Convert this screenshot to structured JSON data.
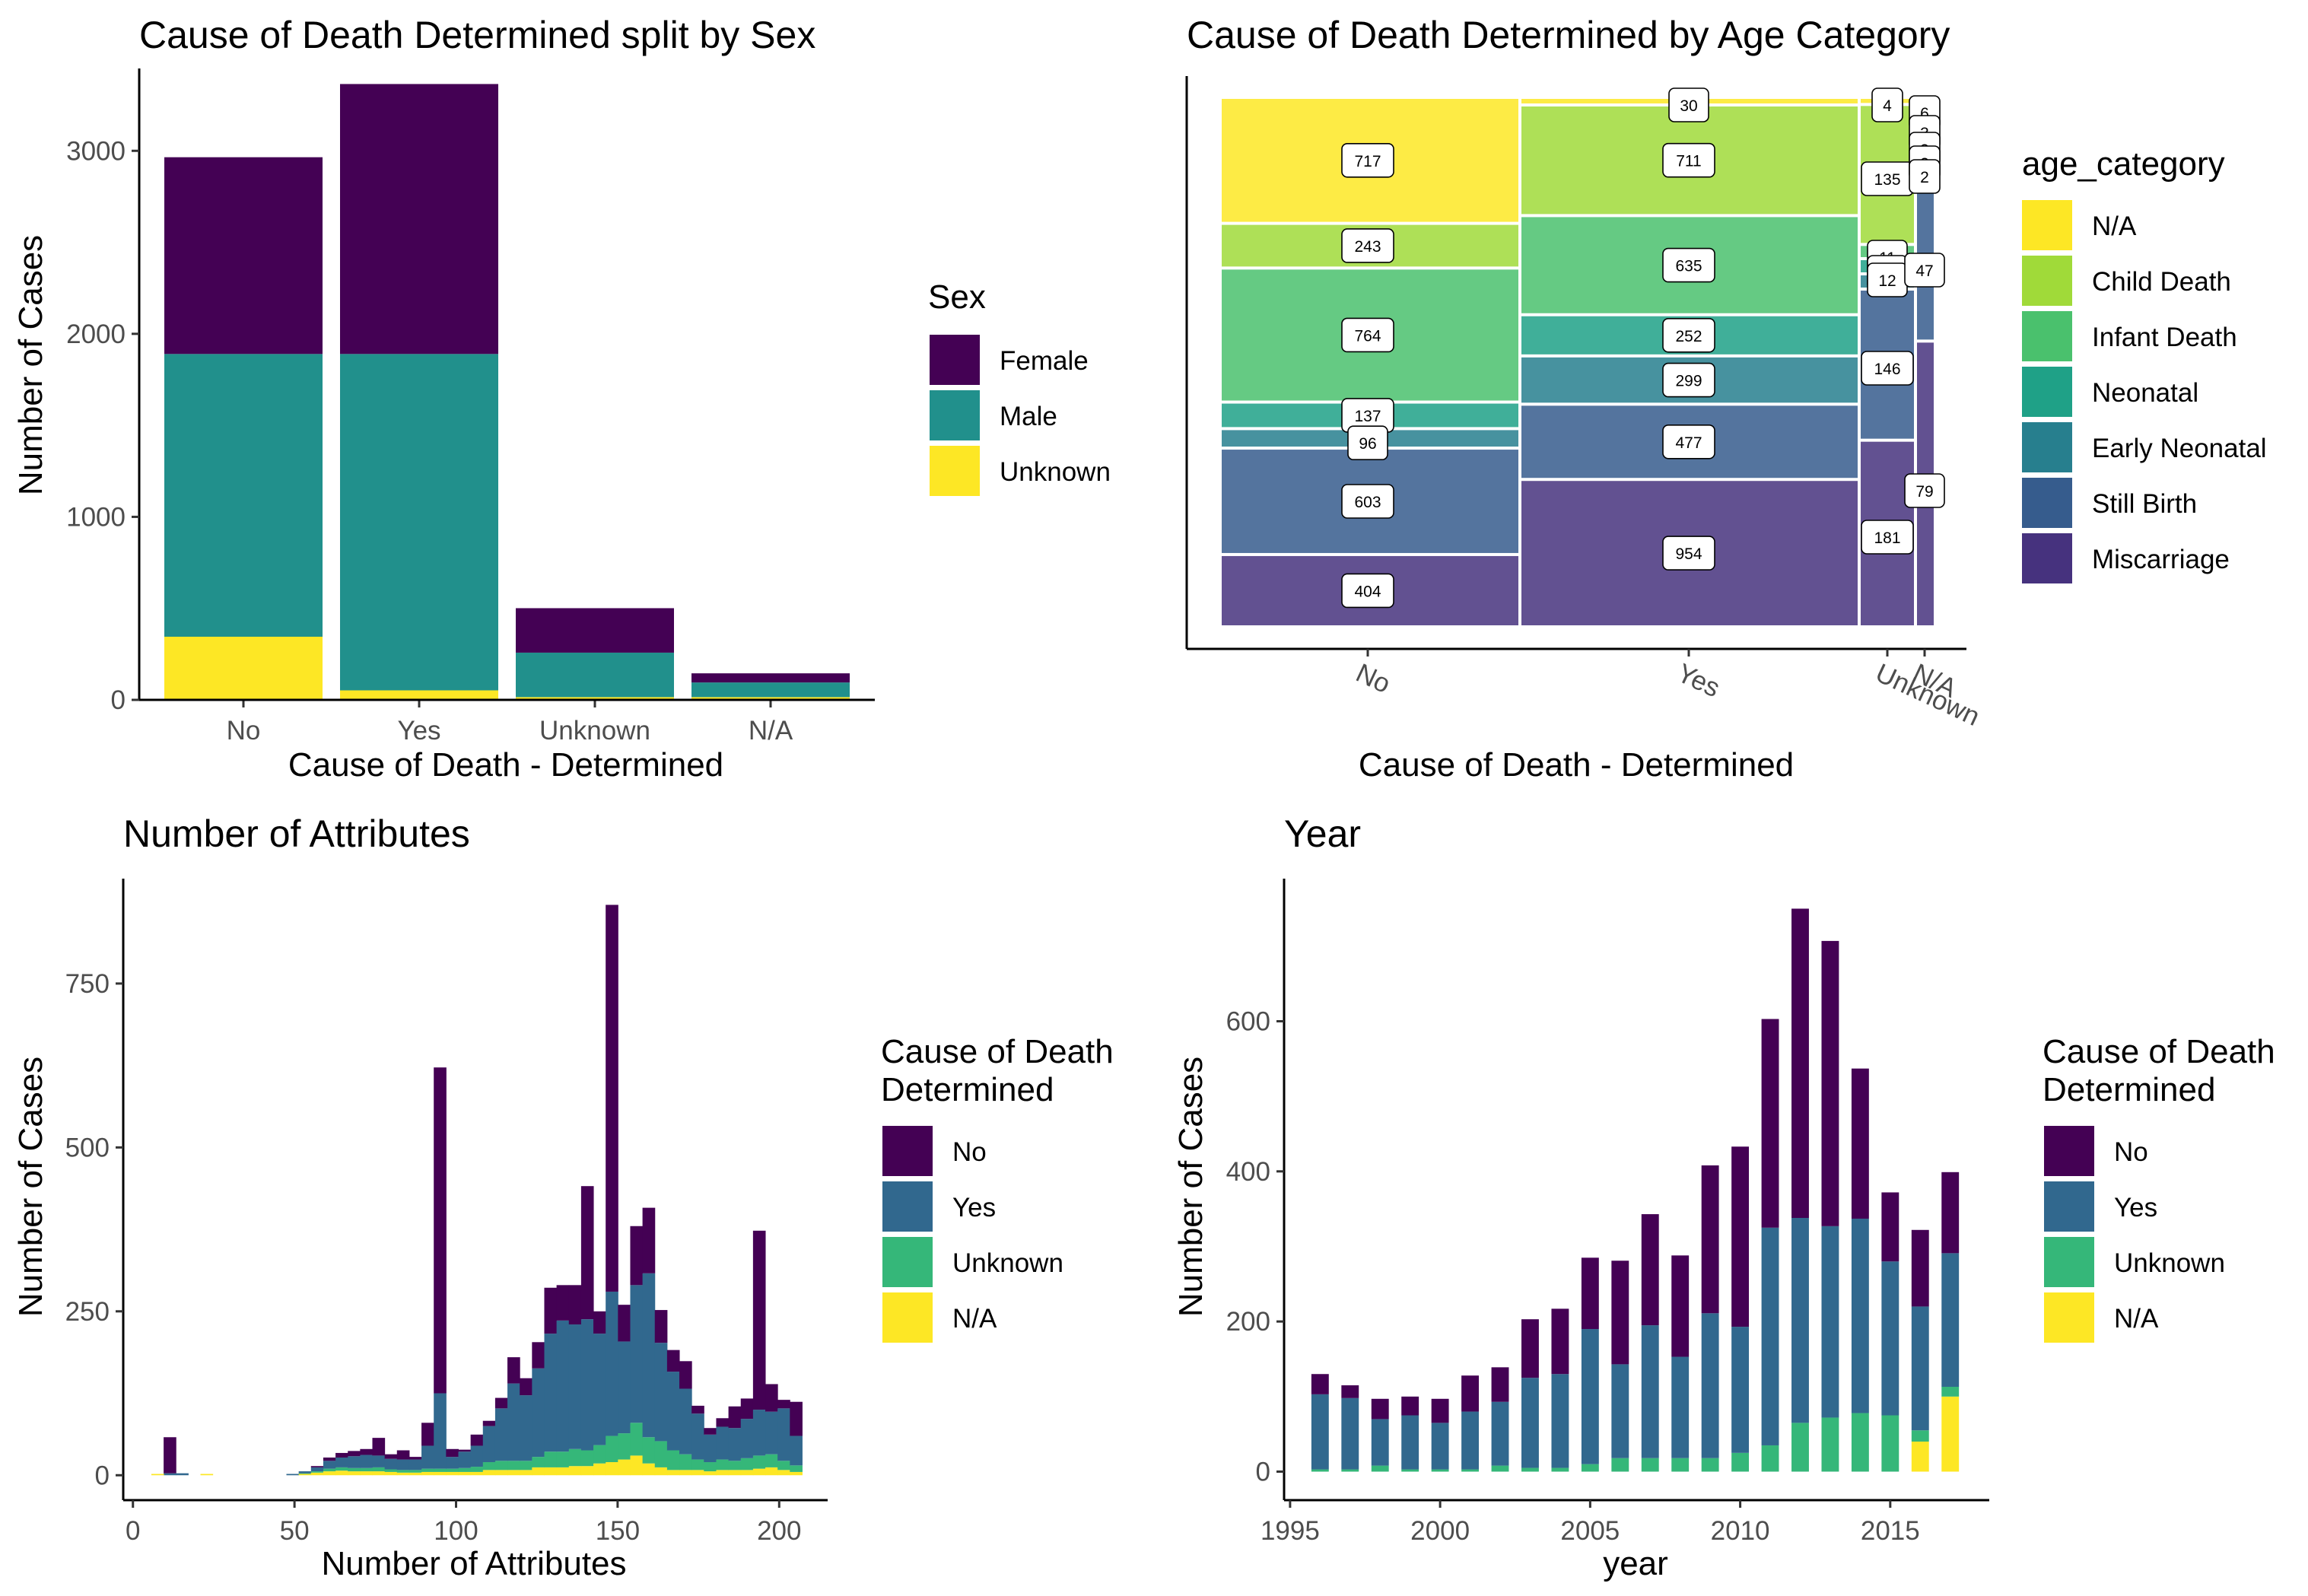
{
  "chart_data": [
    {
      "id": "sex",
      "type": "bar",
      "title": "Cause of Death Determined split by Sex",
      "xlabel": "Cause of Death - Determined",
      "ylabel": "Number of Cases",
      "stacked": true,
      "categories": [
        "No",
        "Yes",
        "Unknown",
        "N/A"
      ],
      "ylim": [
        0,
        3450
      ],
      "yticks": [
        0,
        1000,
        2000,
        3000
      ],
      "legend_title": "Sex",
      "legend_position": "right",
      "series": [
        {
          "name": "Unknown",
          "color": "#FDE725",
          "values": [
            345,
            52,
            15,
            15
          ]
        },
        {
          "name": "Male",
          "color": "#21908C",
          "values": [
            1545,
            1838,
            243,
            80
          ]
        },
        {
          "name": "Female",
          "color": "#440154",
          "values": [
            1075,
            1475,
            243,
            50
          ]
        }
      ],
      "legend_order": [
        "Female",
        "Male",
        "Unknown"
      ]
    },
    {
      "id": "age",
      "type": "mosaic",
      "title": "Cause of Death Determined by Age Category",
      "xlabel": "Cause of Death - Determined",
      "categories": [
        "No",
        "Yes",
        "Unknown",
        "N/A"
      ],
      "legend_title": "age_category",
      "legend_position": "right",
      "levels": [
        {
          "name": "N/A",
          "color": "#FDE725"
        },
        {
          "name": "Child Death",
          "color": "#A0DA39"
        },
        {
          "name": "Infant Death",
          "color": "#4AC16D"
        },
        {
          "name": "Neonatal",
          "color": "#1FA187"
        },
        {
          "name": "Early Neonatal",
          "color": "#277F8E"
        },
        {
          "name": "Still Birth",
          "color": "#365C8D"
        },
        {
          "name": "Miscarriage",
          "color": "#46327E"
        }
      ],
      "counts": {
        "No": [
          717,
          243,
          764,
          137,
          96,
          603,
          404
        ],
        "Yes": [
          30,
          711,
          635,
          252,
          299,
          477,
          954
        ],
        "Unknown": [
          4,
          135,
          11,
          12,
          12,
          146,
          181
        ],
        "N/A": [
          6,
          3,
          3,
          2,
          2,
          47,
          79
        ]
      },
      "labels": {
        "No": [
          "717",
          "243",
          "764",
          "137",
          "96",
          "603",
          "404"
        ],
        "Yes": [
          "30",
          "711",
          "635",
          "252",
          "299",
          "477",
          "954"
        ],
        "Unknown": [
          "4",
          "135",
          "11",
          "12",
          "12",
          "146",
          "181"
        ],
        "N/A": [
          "6",
          "3",
          "3",
          "2",
          "2",
          "47",
          "79"
        ]
      }
    },
    {
      "id": "attributes",
      "type": "bar",
      "subtype": "histogram",
      "title": "Number of Attributes",
      "xlabel": "Number of Attributes",
      "ylabel": "Number of Cases",
      "stacked": true,
      "bin_width": 3.8,
      "xlim": [
        -3,
        215
      ],
      "xticks": [
        0,
        50,
        100,
        150,
        200
      ],
      "ylim": [
        -38,
        910
      ],
      "yticks": [
        0,
        250,
        500,
        750
      ],
      "legend_title": "Cause of Death\nDetermined",
      "legend_title_lines": [
        "Cause of Death",
        "Determined"
      ],
      "legend_position": "right",
      "series_order": [
        "N/A",
        "Unknown",
        "Yes",
        "No"
      ],
      "colors": {
        "No": "#440154",
        "Yes": "#31688E",
        "Unknown": "#35B779",
        "N/A": "#FDE725"
      },
      "bins": [
        {
          "x": 11.4,
          "na": 0,
          "unk": 0,
          "yes": 3,
          "no": 55
        },
        {
          "x": 15.2,
          "na": 0,
          "unk": 0,
          "yes": 3,
          "no": 0
        },
        {
          "x": 7.6,
          "na": 2,
          "unk": 0,
          "yes": 0,
          "no": 0
        },
        {
          "x": 22.8,
          "na": 2,
          "unk": 0,
          "yes": 0,
          "no": 0
        },
        {
          "x": 49.4,
          "na": 0,
          "unk": 0,
          "yes": 2,
          "no": 0
        },
        {
          "x": 53.2,
          "na": 2,
          "unk": 1,
          "yes": 3,
          "no": 0
        },
        {
          "x": 57.0,
          "na": 4,
          "unk": 2,
          "yes": 6,
          "no": 2
        },
        {
          "x": 60.8,
          "na": 6,
          "unk": 4,
          "yes": 12,
          "no": 5
        },
        {
          "x": 64.6,
          "na": 7,
          "unk": 5,
          "yes": 15,
          "no": 7
        },
        {
          "x": 68.4,
          "na": 6,
          "unk": 5,
          "yes": 18,
          "no": 8
        },
        {
          "x": 72.2,
          "na": 6,
          "unk": 5,
          "yes": 20,
          "no": 9
        },
        {
          "x": 76.0,
          "na": 6,
          "unk": 6,
          "yes": 18,
          "no": 27
        },
        {
          "x": 79.8,
          "na": 5,
          "unk": 4,
          "yes": 16,
          "no": 7
        },
        {
          "x": 83.6,
          "na": 4,
          "unk": 4,
          "yes": 16,
          "no": 14
        },
        {
          "x": 87.4,
          "na": 4,
          "unk": 4,
          "yes": 16,
          "no": 4
        },
        {
          "x": 91.2,
          "na": 5,
          "unk": 5,
          "yes": 35,
          "no": 35
        },
        {
          "x": 95.0,
          "na": 5,
          "unk": 5,
          "yes": 115,
          "no": 497
        },
        {
          "x": 98.8,
          "na": 5,
          "unk": 5,
          "yes": 18,
          "no": 12
        },
        {
          "x": 102.6,
          "na": 5,
          "unk": 6,
          "yes": 25,
          "no": 3
        },
        {
          "x": 106.4,
          "na": 5,
          "unk": 8,
          "yes": 32,
          "no": 17
        },
        {
          "x": 110.2,
          "na": 8,
          "unk": 12,
          "yes": 55,
          "no": 8
        },
        {
          "x": 114.0,
          "na": 8,
          "unk": 14,
          "yes": 80,
          "no": 16
        },
        {
          "x": 117.8,
          "na": 8,
          "unk": 14,
          "yes": 118,
          "no": 40
        },
        {
          "x": 121.6,
          "na": 8,
          "unk": 14,
          "yes": 100,
          "no": 26
        },
        {
          "x": 125.4,
          "na": 12,
          "unk": 16,
          "yes": 135,
          "no": 40
        },
        {
          "x": 129.2,
          "na": 12,
          "unk": 24,
          "yes": 180,
          "no": 70
        },
        {
          "x": 133.0,
          "na": 12,
          "unk": 24,
          "yes": 200,
          "no": 54
        },
        {
          "x": 136.8,
          "na": 14,
          "unk": 26,
          "yes": 190,
          "no": 60
        },
        {
          "x": 140.6,
          "na": 14,
          "unk": 24,
          "yes": 200,
          "no": 203
        },
        {
          "x": 144.4,
          "na": 18,
          "unk": 28,
          "yes": 170,
          "no": 34
        },
        {
          "x": 148.2,
          "na": 20,
          "unk": 40,
          "yes": 220,
          "no": 590
        },
        {
          "x": 152.0,
          "na": 24,
          "unk": 40,
          "yes": 140,
          "no": 56
        },
        {
          "x": 155.8,
          "na": 30,
          "unk": 50,
          "yes": 210,
          "no": 90
        },
        {
          "x": 159.6,
          "na": 18,
          "unk": 40,
          "yes": 250,
          "no": 100
        },
        {
          "x": 163.4,
          "na": 12,
          "unk": 40,
          "yes": 150,
          "no": 50
        },
        {
          "x": 167.2,
          "na": 8,
          "unk": 30,
          "yes": 120,
          "no": 33
        },
        {
          "x": 171.0,
          "na": 8,
          "unk": 24,
          "yes": 100,
          "no": 42
        },
        {
          "x": 174.8,
          "na": 8,
          "unk": 16,
          "yes": 70,
          "no": 12
        },
        {
          "x": 178.6,
          "na": 6,
          "unk": 14,
          "yes": 42,
          "no": 10
        },
        {
          "x": 182.4,
          "na": 8,
          "unk": 16,
          "yes": 50,
          "no": 13
        },
        {
          "x": 186.2,
          "na": 8,
          "unk": 14,
          "yes": 50,
          "no": 33
        },
        {
          "x": 190.0,
          "na": 8,
          "unk": 18,
          "yes": 60,
          "no": 31
        },
        {
          "x": 193.8,
          "na": 10,
          "unk": 20,
          "yes": 70,
          "no": 273
        },
        {
          "x": 197.6,
          "na": 12,
          "unk": 20,
          "yes": 65,
          "no": 42
        },
        {
          "x": 201.4,
          "na": 8,
          "unk": 14,
          "yes": 80,
          "no": 13
        },
        {
          "x": 205.2,
          "na": 5,
          "unk": 10,
          "yes": 45,
          "no": 52
        }
      ]
    },
    {
      "id": "year",
      "type": "bar",
      "title": "Year",
      "xlabel": "year",
      "ylabel": "Number of Cases",
      "stacked": true,
      "bar_width": 0.58,
      "xlim": [
        1994.8,
        2018.3
      ],
      "xticks": [
        1995,
        2000,
        2005,
        2010,
        2015
      ],
      "ylim": [
        -38,
        790
      ],
      "yticks": [
        0,
        200,
        400,
        600
      ],
      "legend_title": "Cause of Death\nDetermined",
      "legend_title_lines": [
        "Cause of Death",
        "Determined"
      ],
      "legend_position": "right",
      "series_order": [
        "N/A",
        "Unknown",
        "Yes",
        "No"
      ],
      "colors": {
        "No": "#440154",
        "Yes": "#31688E",
        "Unknown": "#35B779",
        "N/A": "#FDE725"
      },
      "x": [
        1996,
        1997,
        1998,
        1999,
        2000,
        2001,
        2002,
        2003,
        2004,
        2005,
        2006,
        2007,
        2008,
        2009,
        2010,
        2011,
        2012,
        2013,
        2014,
        2015,
        2016,
        2017
      ],
      "series": [
        {
          "name": "N/A",
          "values": [
            0,
            0,
            0,
            0,
            0,
            0,
            0,
            0,
            0,
            0,
            0,
            0,
            0,
            0,
            0,
            0,
            0,
            0,
            0,
            0,
            40,
            100
          ]
        },
        {
          "name": "Unknown",
          "values": [
            3,
            3,
            8,
            3,
            3,
            3,
            8,
            5,
            5,
            10,
            18,
            18,
            18,
            18,
            25,
            35,
            65,
            72,
            78,
            75,
            15,
            13
          ]
        },
        {
          "name": "Yes",
          "values": [
            100,
            95,
            62,
            72,
            62,
            77,
            85,
            120,
            125,
            180,
            125,
            177,
            135,
            193,
            168,
            290,
            273,
            255,
            259,
            205,
            165,
            178
          ]
        },
        {
          "name": "No",
          "values": [
            27,
            17,
            27,
            25,
            32,
            48,
            46,
            78,
            87,
            95,
            138,
            148,
            135,
            197,
            240,
            278,
            412,
            380,
            200,
            92,
            102,
            108
          ]
        }
      ]
    }
  ]
}
